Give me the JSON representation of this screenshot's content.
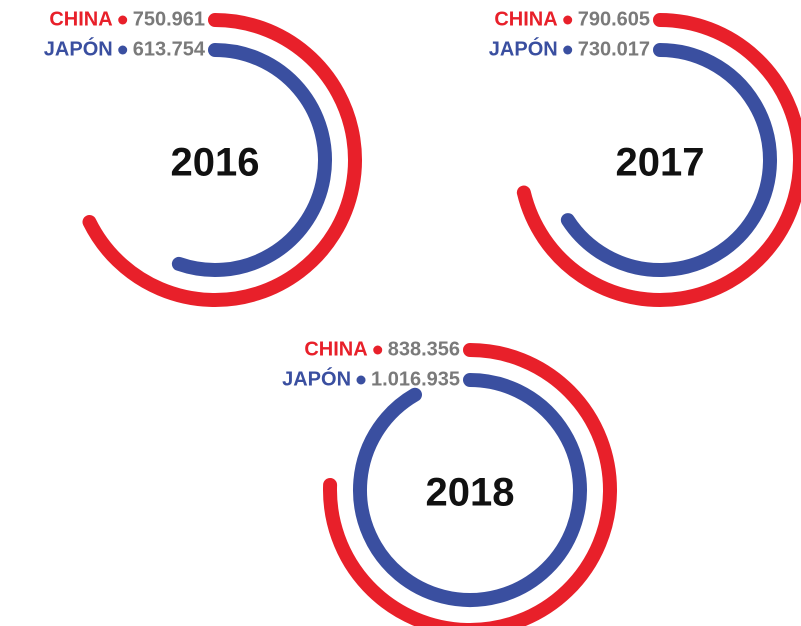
{
  "chart_data": [
    {
      "type": "radial_bar",
      "title": "2016",
      "series": [
        {
          "name": "CHINA",
          "color": "#e8202a",
          "values": [
            750961
          ],
          "value_labels": [
            "750.961"
          ]
        },
        {
          "name": "JAPÓN",
          "color": "#3a4fa0",
          "values": [
            613754
          ],
          "value_labels": [
            "613.754"
          ]
        }
      ]
    },
    {
      "type": "radial_bar",
      "title": "2017",
      "series": [
        {
          "name": "CHINA",
          "color": "#e8202a",
          "values": [
            790605
          ],
          "value_labels": [
            "790.605"
          ]
        },
        {
          "name": "JAPÓN",
          "color": "#3a4fa0",
          "values": [
            730017
          ],
          "value_labels": [
            "730.017"
          ]
        }
      ]
    },
    {
      "type": "radial_bar",
      "title": "2018",
      "series": [
        {
          "name": "CHINA",
          "color": "#e8202a",
          "values": [
            838356
          ],
          "value_labels": [
            "838.356"
          ]
        },
        {
          "name": "JAPÓN",
          "color": "#3a4fa0",
          "values": [
            1016935
          ],
          "value_labels": [
            "1.016.935"
          ]
        }
      ]
    }
  ]
}
